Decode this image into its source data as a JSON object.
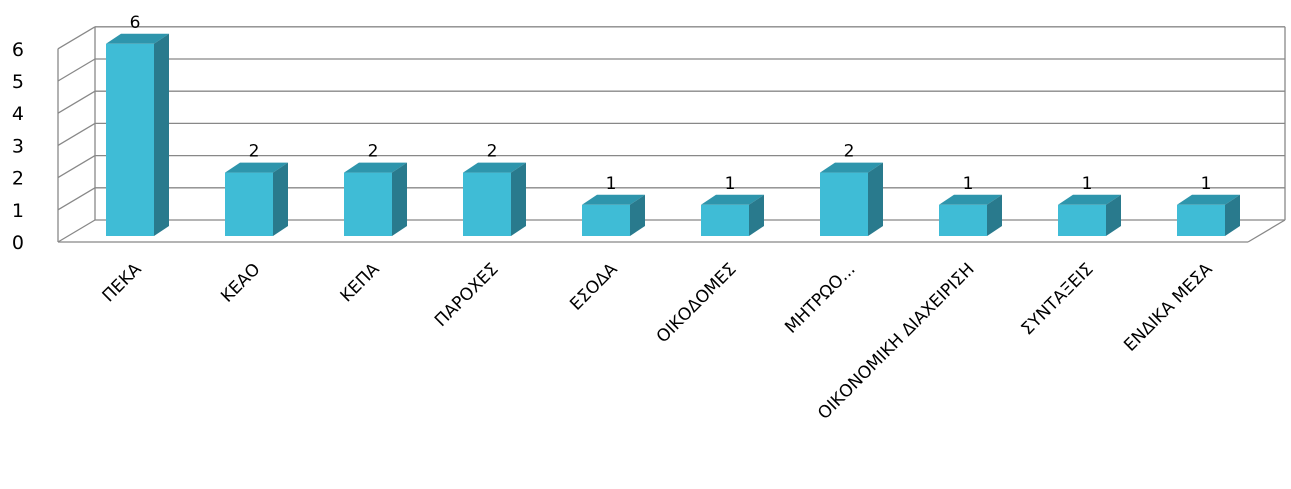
{
  "chart_data": {
    "type": "bar",
    "style": "3d-column",
    "categories": [
      "ΠΕΚΑ",
      "ΚΕΑΟ",
      "ΚΕΠΑ",
      "ΠΑΡΟΧΕΣ",
      "ΕΣΟΔΑ",
      "ΟΙΚΟΔΟΜΕΣ",
      "ΜΗΤΡΩΟ...",
      "ΟΙΚΟΝΟΜΙΚΗ ΔΙΑΧΕΙΡΙΣΗ",
      "ΣΥΝΤΑΞΕΙΣ",
      "ΕΝΔΙΚΑ ΜΕΣΑ"
    ],
    "values": [
      6,
      2,
      2,
      2,
      1,
      1,
      2,
      1,
      1,
      1
    ],
    "data_labels": [
      "6",
      "2",
      "2",
      "2",
      "1",
      "1",
      "2",
      "1",
      "1",
      "1"
    ],
    "yticks": [
      "0",
      "1",
      "2",
      "3",
      "4",
      "5",
      "6"
    ],
    "ylim": [
      0,
      6
    ],
    "grid": true,
    "legend": "none",
    "colors": {
      "bar_front": "#3fbcd6",
      "bar_top": "#2e95ac",
      "bar_side": "#297a8d",
      "grid": "#888888",
      "wall": "#ffffff"
    }
  }
}
